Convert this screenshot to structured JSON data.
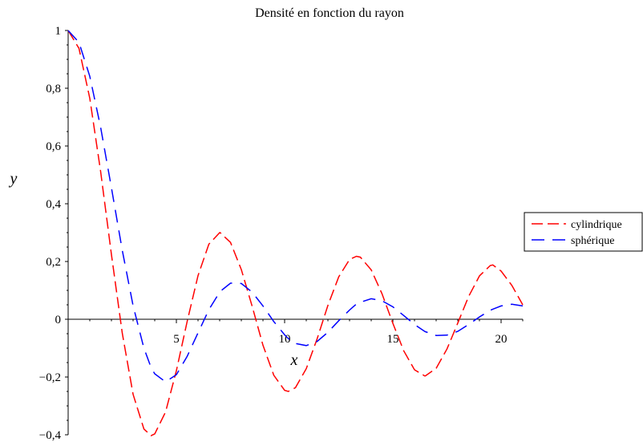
{
  "chart_data": {
    "type": "line",
    "title": "Densité en fonction du rayon",
    "xlabel": "x",
    "ylabel": "y",
    "xlim": [
      0,
      21
    ],
    "ylim": [
      -0.4,
      1
    ],
    "x_ticks": [
      5,
      10,
      15,
      20
    ],
    "x_tick_labels": [
      "5",
      "10",
      "15",
      "20"
    ],
    "y_ticks": [
      -0.4,
      -0.2,
      0,
      0.2,
      0.4,
      0.6,
      0.8,
      1
    ],
    "y_tick_labels": [
      "−0,4",
      "−0,2",
      "0",
      "0,2",
      "0,4",
      "0,6",
      "0,8",
      "1"
    ],
    "grid": false,
    "legend_position": "right",
    "x": [
      0,
      0.5,
      1,
      1.5,
      2,
      2.5,
      3,
      3.5,
      3.83,
      4,
      4.5,
      5,
      5.5,
      6,
      6.5,
      7,
      7.02,
      7.5,
      8,
      8.5,
      9,
      9.5,
      10,
      10.17,
      10.5,
      11,
      11.5,
      12,
      12.5,
      13,
      13.32,
      13.5,
      14,
      14.5,
      15,
      15.5,
      16,
      16.47,
      16.5,
      17,
      17.5,
      18,
      18.5,
      19,
      19.5,
      19.62,
      20,
      20.5,
      21
    ],
    "series": [
      {
        "name": "cylindrique",
        "color": "#ff0000",
        "values": [
          1.0,
          0.938,
          0.765,
          0.512,
          0.224,
          -0.048,
          -0.26,
          -0.38,
          -0.403,
          -0.397,
          -0.321,
          -0.178,
          -0.007,
          0.151,
          0.26,
          0.3,
          0.3,
          0.266,
          0.172,
          0.045,
          -0.09,
          -0.194,
          -0.246,
          -0.25,
          -0.237,
          -0.171,
          -0.068,
          0.048,
          0.147,
          0.207,
          0.218,
          0.215,
          0.171,
          0.088,
          -0.014,
          -0.109,
          -0.175,
          -0.196,
          -0.196,
          -0.17,
          -0.103,
          -0.013,
          0.079,
          0.15,
          0.186,
          0.188,
          0.167,
          0.117,
          0.05
        ]
      },
      {
        "name": "sphérique",
        "color": "#0000ff",
        "values": [
          1.0,
          0.959,
          0.841,
          0.665,
          0.455,
          0.239,
          0.047,
          -0.1,
          -0.167,
          -0.189,
          -0.217,
          -0.192,
          -0.128,
          -0.047,
          0.033,
          0.094,
          0.096,
          0.125,
          0.124,
          0.094,
          0.046,
          -0.008,
          -0.054,
          -0.067,
          -0.084,
          -0.091,
          -0.077,
          -0.045,
          -0.005,
          0.032,
          0.053,
          0.059,
          0.071,
          0.064,
          0.043,
          0.013,
          -0.018,
          -0.042,
          -0.043,
          -0.056,
          -0.055,
          -0.042,
          -0.018,
          0.008,
          0.031,
          0.035,
          0.046,
          0.052,
          0.046
        ]
      }
    ]
  }
}
